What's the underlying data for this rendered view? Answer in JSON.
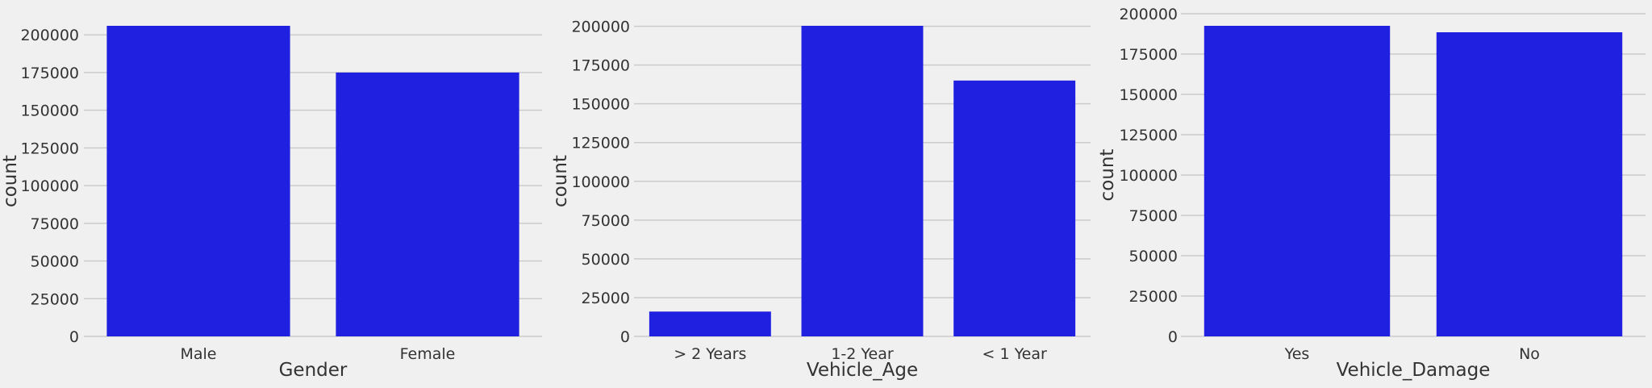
{
  "chart_data": [
    {
      "type": "bar",
      "categories": [
        "Male",
        "Female"
      ],
      "values": [
        206000,
        175000
      ],
      "xlabel": "Gender",
      "ylabel": "count",
      "ylim": [
        0,
        206000
      ],
      "yticks": [
        "0",
        "25000",
        "50000",
        "75000",
        "100000",
        "125000",
        "150000",
        "175000",
        "200000"
      ],
      "grid": "horizontal"
    },
    {
      "type": "bar",
      "categories": [
        "> 2 Years",
        "1-2 Year",
        "< 1 Year"
      ],
      "values": [
        16000,
        200300,
        165000
      ],
      "xlabel": "Vehicle_Age",
      "ylabel": "count",
      "ylim": [
        0,
        200300
      ],
      "yticks": [
        "0",
        "25000",
        "50000",
        "75000",
        "100000",
        "125000",
        "150000",
        "175000",
        "200000"
      ],
      "grid": "horizontal"
    },
    {
      "type": "bar",
      "categories": [
        "Yes",
        "No"
      ],
      "values": [
        192500,
        188500
      ],
      "xlabel": "Vehicle_Damage",
      "ylabel": "count",
      "ylim": [
        0,
        200000
      ],
      "yticks": [
        "0",
        "25000",
        "50000",
        "75000",
        "100000",
        "125000",
        "150000",
        "175000",
        "200000"
      ],
      "grid": "horizontal"
    }
  ],
  "colors": {
    "bar": "#2020e0",
    "background": "#f0f0f0",
    "grid": "#cbcbcb",
    "text": "#333333"
  }
}
